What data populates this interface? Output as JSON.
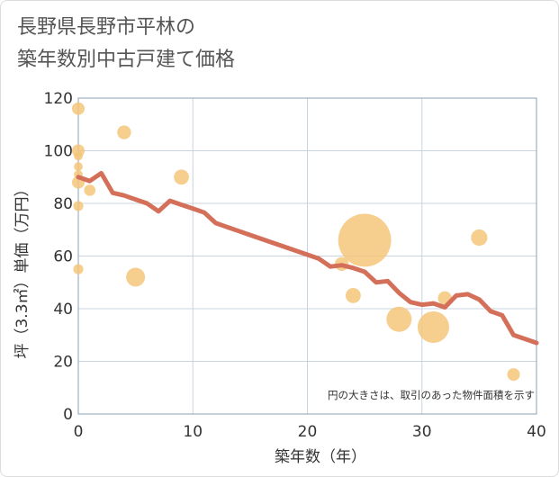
{
  "chart_data": {
    "type": "scatter",
    "title_lines": [
      "長野県長野市平林の",
      "築年数別中古戸建て価格"
    ],
    "xlabel": "築年数（年）",
    "ylabel": "坪（3.3㎡）単価（万円）",
    "xlim": [
      0,
      40
    ],
    "ylim": [
      0,
      120
    ],
    "xticks": [
      0,
      10,
      20,
      30,
      40
    ],
    "yticks": [
      0,
      20,
      40,
      60,
      80,
      100,
      120
    ],
    "grid": true,
    "annotation": "円の大きさは、取引のあった物件面積を示す",
    "colors": {
      "bubble": "#f5c57a",
      "trend": "#d4705a",
      "grid": "#c8d4e0",
      "frame": "#8aa0b4"
    },
    "bubbles": [
      {
        "x": 0,
        "y": 116,
        "size": 1
      },
      {
        "x": 0,
        "y": 100,
        "size": 1
      },
      {
        "x": 0,
        "y": 98,
        "size": 0.7
      },
      {
        "x": 0,
        "y": 94,
        "size": 0.7
      },
      {
        "x": 0,
        "y": 91,
        "size": 0.7
      },
      {
        "x": 0,
        "y": 88,
        "size": 1
      },
      {
        "x": 0,
        "y": 79,
        "size": 0.8
      },
      {
        "x": 0,
        "y": 55,
        "size": 0.8
      },
      {
        "x": 1,
        "y": 85,
        "size": 0.9
      },
      {
        "x": 4,
        "y": 107,
        "size": 1.1
      },
      {
        "x": 5,
        "y": 52,
        "size": 1.5
      },
      {
        "x": 9,
        "y": 90,
        "size": 1.2
      },
      {
        "x": 23,
        "y": 57,
        "size": 1.1
      },
      {
        "x": 24,
        "y": 45,
        "size": 1.2
      },
      {
        "x": 25,
        "y": 66,
        "size": 4.2
      },
      {
        "x": 28,
        "y": 36,
        "size": 2
      },
      {
        "x": 31,
        "y": 33,
        "size": 2.5
      },
      {
        "x": 32,
        "y": 44,
        "size": 1.1
      },
      {
        "x": 35,
        "y": 67,
        "size": 1.3
      },
      {
        "x": 38,
        "y": 15,
        "size": 1
      }
    ],
    "trend_line": {
      "x": [
        0,
        1,
        2,
        3,
        4,
        5,
        6,
        7,
        8,
        9,
        10,
        11,
        12,
        13,
        14,
        15,
        16,
        17,
        18,
        19,
        20,
        21,
        22,
        23,
        24,
        25,
        26,
        27,
        28,
        29,
        30,
        31,
        32,
        33,
        34,
        35,
        36,
        37,
        38,
        39,
        40
      ],
      "y": [
        90,
        88.5,
        91.5,
        84,
        83,
        81.5,
        80,
        77,
        81,
        79.5,
        78,
        76.5,
        72.5,
        71,
        69.5,
        68,
        66.5,
        65,
        63.5,
        62,
        60.5,
        59,
        56,
        56.5,
        55.5,
        54,
        50,
        50.5,
        46,
        42.5,
        41.5,
        42,
        40.5,
        45,
        45.5,
        43.5,
        39,
        37.5,
        30,
        28.5,
        27
      ]
    }
  }
}
